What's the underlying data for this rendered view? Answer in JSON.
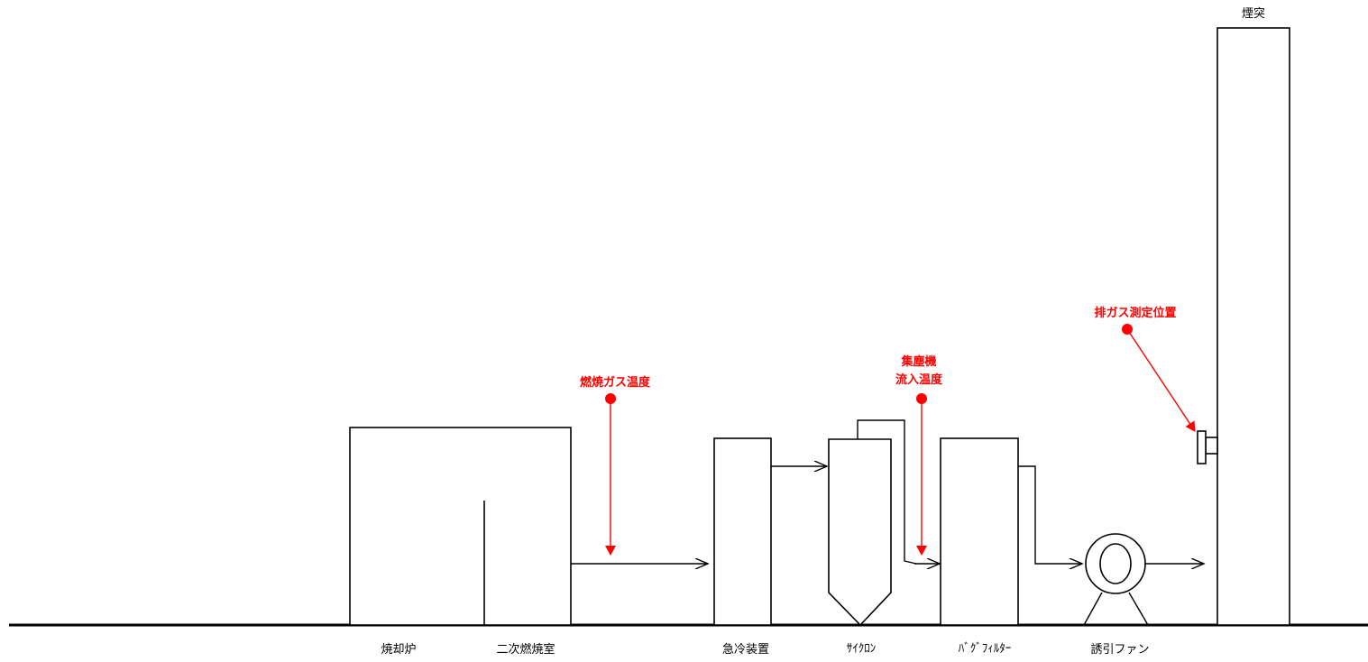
{
  "labels": {
    "incinerator": "焼却炉",
    "secondary_chamber": "二次燃焼室",
    "quench": "急冷装置",
    "cyclone": "ｻｲｸﾛﾝ",
    "bag_filter": "ﾊﾞｸﾞﾌｨﾙﾀｰ",
    "fan": "誘引ファン",
    "stack": "煙突"
  },
  "measurement_points": {
    "combustion_temp": "燃焼ガス温度",
    "collector_inlet_line1": "集塵機",
    "collector_inlet_line2": "流入温度",
    "exhaust_point": "排ガス測定位置"
  },
  "colors": {
    "equipment_stroke": "#000000",
    "measurement": "#ff0000"
  }
}
